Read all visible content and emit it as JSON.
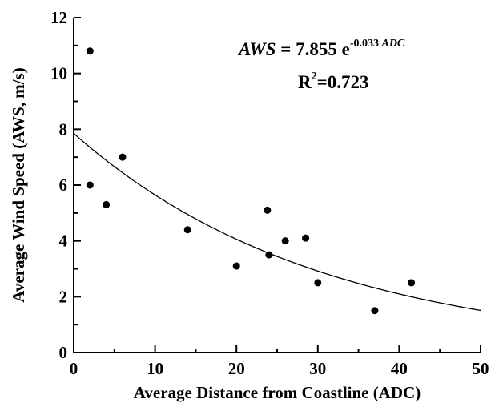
{
  "chart_data": {
    "type": "scatter",
    "xlabel": "Average Distance from Coastline (ADC)",
    "ylabel": "Average Wind Speed (AWS, m/s)",
    "xlim": [
      0,
      50
    ],
    "ylim": [
      0,
      12
    ],
    "xticks": [
      0,
      10,
      20,
      30,
      40,
      50
    ],
    "yticks": [
      0,
      2,
      4,
      6,
      8,
      10,
      12
    ],
    "xtick_labels": [
      "0",
      "10",
      "20",
      "30",
      "40",
      "50"
    ],
    "ytick_labels": [
      "0",
      "2",
      "4",
      "6",
      "8",
      "10",
      "12"
    ],
    "grid": false,
    "points": [
      {
        "x": 2,
        "y": 10.8
      },
      {
        "x": 2,
        "y": 6.0
      },
      {
        "x": 4,
        "y": 5.3
      },
      {
        "x": 6,
        "y": 7.0
      },
      {
        "x": 14,
        "y": 4.4
      },
      {
        "x": 20,
        "y": 3.1
      },
      {
        "x": 23.8,
        "y": 5.1
      },
      {
        "x": 24,
        "y": 3.5
      },
      {
        "x": 26,
        "y": 4.0
      },
      {
        "x": 28.5,
        "y": 4.1
      },
      {
        "x": 30,
        "y": 2.5
      },
      {
        "x": 37,
        "y": 1.5
      },
      {
        "x": 41.5,
        "y": 2.5
      }
    ],
    "fit": {
      "model": "exponential",
      "a": 7.855,
      "b": -0.033
    },
    "annotations": {
      "eq_lhs": "AWS",
      "eq_mid": " = 7.855 e",
      "eq_exp": "-0.033 ",
      "eq_exp_var": "ADC",
      "r2_prefix": "R",
      "r2_sup": "2",
      "r2_value": "=0.723"
    }
  }
}
